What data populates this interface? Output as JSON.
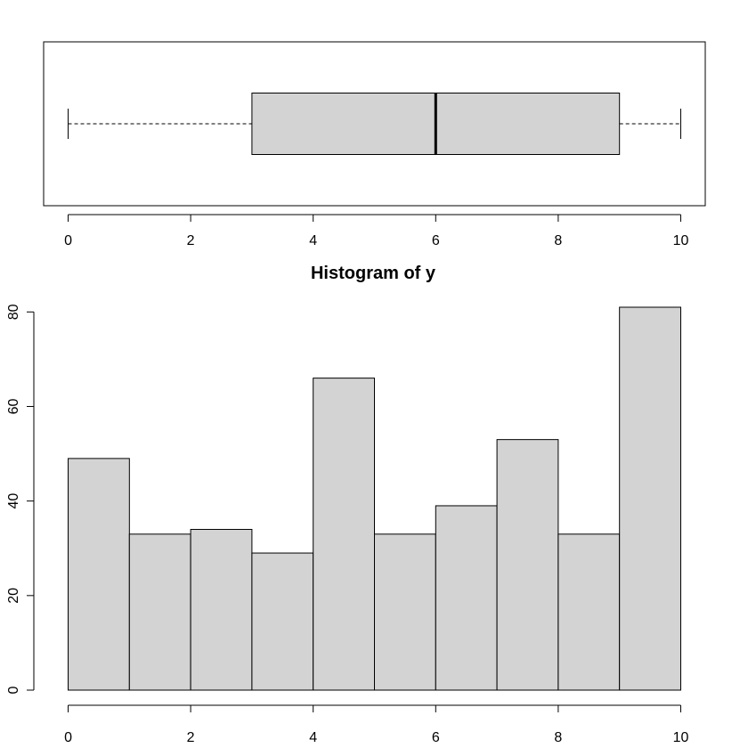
{
  "chart_data": [
    {
      "type": "boxplot",
      "orientation": "horizontal",
      "title": "",
      "xlabel": "",
      "ylabel": "",
      "xlim": [
        -0.4,
        10.4
      ],
      "x_ticks": [
        0,
        2,
        4,
        6,
        8,
        10
      ],
      "min": 0,
      "q1": 3,
      "median": 6,
      "q3": 9,
      "max": 10,
      "box_fill": "#d3d3d3"
    },
    {
      "type": "bar",
      "subtype": "histogram",
      "title": "Histogram of y",
      "xlabel": "",
      "ylabel": "",
      "bin_edges": [
        0,
        1,
        2,
        3,
        4,
        5,
        6,
        7,
        8,
        9,
        10
      ],
      "counts": [
        49,
        33,
        34,
        29,
        66,
        33,
        39,
        53,
        33,
        81
      ],
      "xlim": [
        -0.4,
        10.4
      ],
      "ylim": [
        0,
        81
      ],
      "x_ticks": [
        0,
        2,
        4,
        6,
        8,
        10
      ],
      "y_ticks": [
        0,
        20,
        40,
        60,
        80
      ],
      "bar_fill": "#d3d3d3"
    }
  ]
}
